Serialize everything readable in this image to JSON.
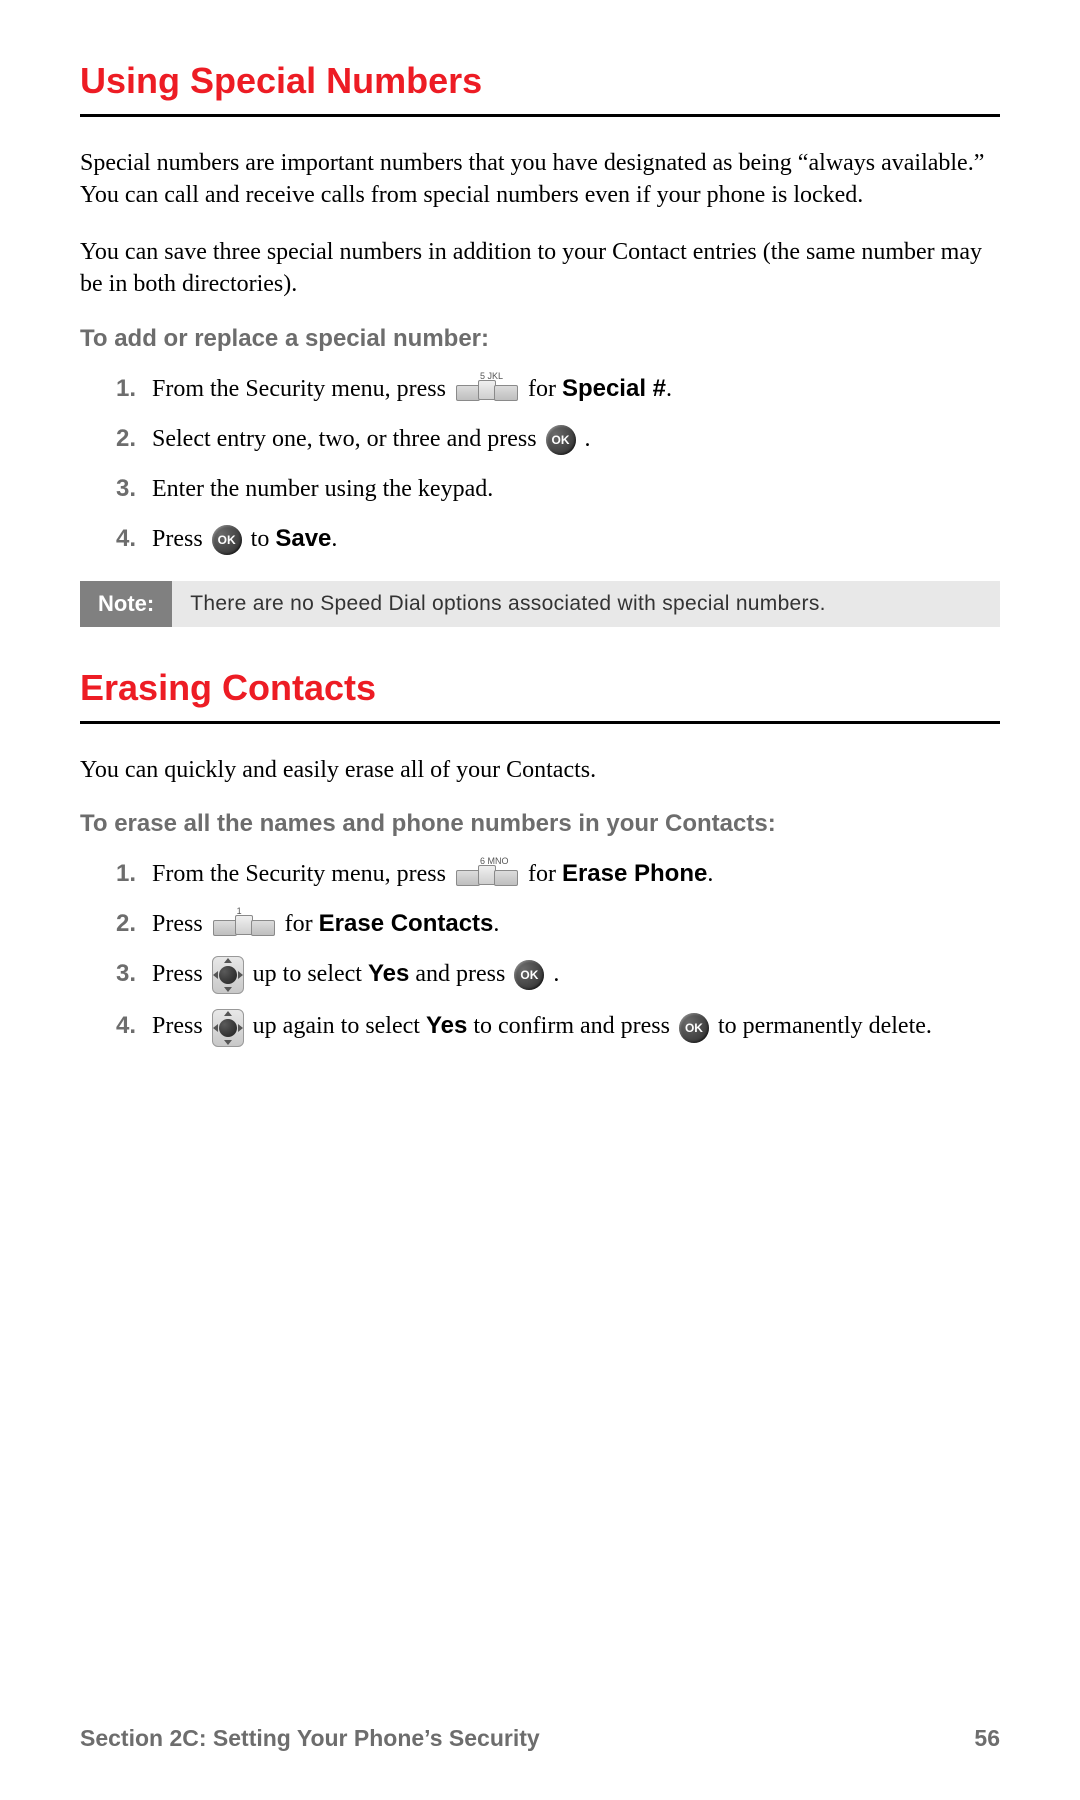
{
  "colors": {
    "heading": "#ed1c24",
    "rule": "#000000",
    "subhead": "#6d6d6d",
    "note_label_bg": "#808080",
    "note_label_fg": "#ffffff",
    "note_body_bg": "#e8e8e8",
    "note_body_fg": "#333333",
    "body_text": "#000000",
    "footer_text": "#6d6d6d",
    "page_bg": "#ffffff"
  },
  "typography": {
    "heading_family": "Arial",
    "heading_size_pt": 27,
    "body_family": "Georgia",
    "body_size_pt": 18,
    "subhead_size_pt": 18,
    "footer_size_pt": 17
  },
  "icons": {
    "ok_button_label": "OK",
    "key5_label": "5 JKL",
    "key6_label": "6 MNO",
    "key1_label": "1"
  },
  "section1": {
    "heading": "Using Special Numbers",
    "para1": "Special numbers are important numbers that you have designated as being “always available.” You can call and receive calls from special numbers even if your phone is locked.",
    "para2": "You can save three special numbers in addition to your Contact entries (the same number may be in both directories).",
    "subhead": "To add or replace a special number:",
    "steps": {
      "s1_a": "From the Security menu, press ",
      "s1_b": " for ",
      "s1_bold": "Special #",
      "s1_c": ".",
      "s2_a": "Select entry one, two, or three and press ",
      "s2_b": ".",
      "s3": "Enter the number using the keypad.",
      "s4_a": "Press ",
      "s4_b": " to ",
      "s4_bold": "Save",
      "s4_c": "."
    },
    "note_label": "Note:",
    "note_body": "There are no Speed Dial options associated with special numbers."
  },
  "section2": {
    "heading": "Erasing Contacts",
    "para1": "You can quickly and easily erase all of your Contacts.",
    "subhead": "To erase all the names and phone numbers in your Contacts:",
    "steps": {
      "s1_a": "From the Security menu, press ",
      "s1_b": " for ",
      "s1_bold": "Erase Phone",
      "s1_c": ".",
      "s2_a": "Press ",
      "s2_b": " for ",
      "s2_bold": "Erase Contacts",
      "s2_c": ".",
      "s3_a": "Press ",
      "s3_b": " up to select ",
      "s3_bold": "Yes",
      "s3_c": " and press ",
      "s3_d": ".",
      "s4_a": "Press ",
      "s4_b": " up again to select ",
      "s4_bold": "Yes",
      "s4_c": " to confirm and press ",
      "s4_d": " to permanently delete."
    }
  },
  "footer": {
    "section_label": "Section 2C: Setting Your Phone’s Security",
    "page_number": "56"
  }
}
